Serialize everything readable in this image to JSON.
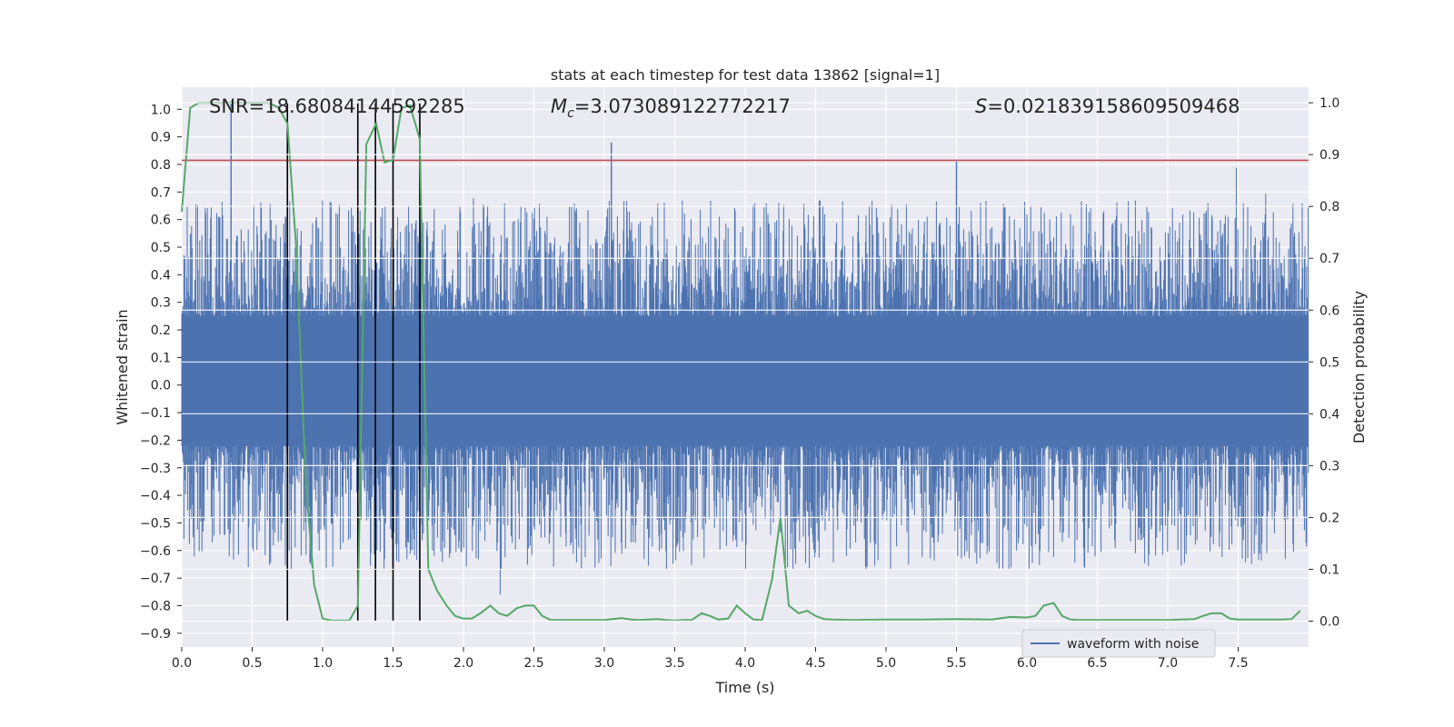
{
  "chart_data": {
    "type": "line",
    "title": "stats at each timestep for test data 13862 [signal=1]",
    "xlabel": "Time (s)",
    "ylabel_left": "Whitened strain",
    "ylabel_right": "Detection probability",
    "xlim": [
      0,
      8
    ],
    "ylim_left": [
      -0.95,
      1.08
    ],
    "ylim_right": [
      -0.05,
      1.03
    ],
    "x_ticks": [
      0.0,
      0.5,
      1.0,
      1.5,
      2.0,
      2.5,
      3.0,
      3.5,
      4.0,
      4.5,
      5.0,
      5.5,
      6.0,
      6.5,
      7.0,
      7.5
    ],
    "x_tick_labels": [
      "0.0",
      "0.5",
      "1.0",
      "1.5",
      "2.0",
      "2.5",
      "3.0",
      "3.5",
      "4.0",
      "4.5",
      "5.0",
      "5.5",
      "6.0",
      "6.5",
      "7.0",
      "7.5"
    ],
    "y_left_ticks": [
      -0.9,
      -0.8,
      -0.7,
      -0.6,
      -0.5,
      -0.4,
      -0.3,
      -0.2,
      -0.1,
      0.0,
      0.1,
      0.2,
      0.3,
      0.4,
      0.5,
      0.6,
      0.7,
      0.8,
      0.9,
      1.0
    ],
    "y_left_tick_labels": [
      "−0.9",
      "−0.8",
      "−0.7",
      "−0.6",
      "−0.5",
      "−0.4",
      "−0.3",
      "−0.2",
      "−0.1",
      "0.0",
      "0.1",
      "0.2",
      "0.3",
      "0.4",
      "0.5",
      "0.6",
      "0.7",
      "0.8",
      "0.9",
      "1.0"
    ],
    "y_right_ticks": [
      0.0,
      0.1,
      0.2,
      0.3,
      0.4,
      0.5,
      0.6,
      0.7,
      0.8,
      0.9,
      1.0
    ],
    "y_right_tick_labels": [
      "0.0",
      "0.1",
      "0.2",
      "0.3",
      "0.4",
      "0.5",
      "0.6",
      "0.7",
      "0.8",
      "0.9",
      "1.0"
    ],
    "grid": true,
    "legend": {
      "location": "lower-right",
      "entries": [
        "waveform with noise"
      ]
    },
    "annotations": {
      "snr": "SNR=18.68084144592285",
      "mc_symbol": "M",
      "mc_sub": "c",
      "mc_value": "=3.073089122772217",
      "s_symbol": "S",
      "s_value": "=0.021839158609509468"
    },
    "threshold_left_y": 0.815,
    "vertical_markers_x": [
      0.75,
      1.25,
      1.375,
      1.5,
      1.69
    ],
    "detection_probability": {
      "x": [
        0.0,
        0.06,
        0.12,
        0.25,
        0.5,
        0.62,
        0.69,
        0.75,
        0.81,
        0.88,
        0.94,
        1.0,
        1.06,
        1.12,
        1.19,
        1.25,
        1.31,
        1.38,
        1.44,
        1.5,
        1.56,
        1.62,
        1.69,
        1.75,
        1.81,
        1.88,
        1.94,
        2.0,
        2.06,
        2.12,
        2.19,
        2.25,
        2.31,
        2.38,
        2.44,
        2.5,
        2.56,
        2.62,
        2.69,
        2.75,
        2.81,
        2.88,
        2.94,
        3.0,
        3.06,
        3.12,
        3.19,
        3.25,
        3.31,
        3.38,
        3.44,
        3.5,
        3.56,
        3.62,
        3.69,
        3.75,
        3.81,
        3.88,
        3.94,
        4.0,
        4.06,
        4.12,
        4.19,
        4.25,
        4.31,
        4.38,
        4.44,
        4.5,
        4.56,
        4.62,
        4.75,
        5.0,
        5.25,
        5.5,
        5.75,
        5.88,
        6.0,
        6.06,
        6.12,
        6.19,
        6.25,
        6.31,
        6.38,
        6.5,
        6.75,
        7.0,
        7.19,
        7.25,
        7.31,
        7.38,
        7.44,
        7.5,
        7.62,
        7.75,
        7.81,
        7.88,
        7.94
      ],
      "y": [
        0.79,
        0.99,
        1.0,
        1.0,
        1.0,
        1.0,
        0.99,
        0.96,
        0.73,
        0.27,
        0.07,
        0.005,
        0.001,
        0.001,
        0.001,
        0.03,
        0.92,
        0.96,
        0.885,
        0.89,
        0.99,
        0.995,
        0.93,
        0.1,
        0.06,
        0.03,
        0.01,
        0.005,
        0.005,
        0.015,
        0.03,
        0.015,
        0.01,
        0.025,
        0.03,
        0.03,
        0.01,
        0.002,
        0.002,
        0.002,
        0.002,
        0.002,
        0.002,
        0.002,
        0.004,
        0.006,
        0.003,
        0.002,
        0.003,
        0.004,
        0.002,
        0.001,
        0.002,
        0.002,
        0.015,
        0.01,
        0.003,
        0.005,
        0.03,
        0.015,
        0.003,
        0.002,
        0.08,
        0.2,
        0.03,
        0.015,
        0.02,
        0.01,
        0.004,
        0.003,
        0.002,
        0.003,
        0.003,
        0.004,
        0.003,
        0.008,
        0.007,
        0.01,
        0.03,
        0.035,
        0.01,
        0.003,
        0.002,
        0.002,
        0.002,
        0.002,
        0.004,
        0.01,
        0.015,
        0.015,
        0.005,
        0.003,
        0.003,
        0.003,
        0.003,
        0.004,
        0.02
      ]
    }
  }
}
